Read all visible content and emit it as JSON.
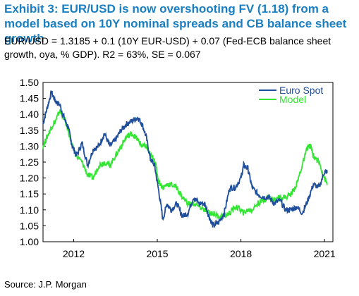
{
  "header": {
    "title": "Exhibit 3: EUR/USD is now overshooting FV (1.18) from a model based on 10Y nominal spreads and CB balance sheet growth",
    "subtitle": "EUR/USD = 1.3185 + 0.1 (10Y EUR-USD) + 0.07 (Fed-ECB balance sheet growth, oya, % GDP). R2 = 63%, SE = 0.067"
  },
  "footer": {
    "source": "Source: J.P. Morgan"
  },
  "chart_data": {
    "type": "line",
    "title": "Exhibit 3: EUR/USD is now overshooting FV (1.18) from a model based on 10Y nominal spreads and CB balance sheet growth",
    "xlabel": "",
    "ylabel": "",
    "xlim": [
      2010.9,
      2021.3
    ],
    "ylim": [
      1.0,
      1.5
    ],
    "x_ticks": [
      "2012",
      "2015",
      "2018",
      "2021"
    ],
    "y_ticks": [
      "1.00",
      "1.05",
      "1.10",
      "1.15",
      "1.20",
      "1.25",
      "1.30",
      "1.35",
      "1.40",
      "1.45",
      "1.50"
    ],
    "grid": false,
    "legend": "top-right",
    "series": [
      {
        "name": "Euro Spot",
        "color": "#1f4e9c",
        "x": [
          2010.9,
          2011.05,
          2011.2,
          2011.35,
          2011.5,
          2011.65,
          2011.8,
          2011.95,
          2012.1,
          2012.3,
          2012.5,
          2012.7,
          2012.9,
          2013.1,
          2013.3,
          2013.5,
          2013.7,
          2013.9,
          2014.1,
          2014.3,
          2014.45,
          2014.6,
          2014.75,
          2014.9,
          2015.05,
          2015.2,
          2015.35,
          2015.5,
          2015.7,
          2015.9,
          2016.1,
          2016.3,
          2016.5,
          2016.7,
          2016.85,
          2017.0,
          2017.2,
          2017.4,
          2017.6,
          2017.8,
          2018.0,
          2018.1,
          2018.25,
          2018.4,
          2018.6,
          2018.8,
          2019.0,
          2019.2,
          2019.4,
          2019.6,
          2019.8,
          2020.0,
          2020.2,
          2020.4,
          2020.6,
          2020.8,
          2021.0,
          2021.1
        ],
        "values": [
          1.37,
          1.42,
          1.47,
          1.44,
          1.43,
          1.39,
          1.36,
          1.3,
          1.27,
          1.31,
          1.24,
          1.29,
          1.3,
          1.34,
          1.3,
          1.32,
          1.35,
          1.37,
          1.38,
          1.39,
          1.37,
          1.33,
          1.26,
          1.24,
          1.16,
          1.07,
          1.12,
          1.1,
          1.12,
          1.08,
          1.09,
          1.14,
          1.12,
          1.12,
          1.08,
          1.05,
          1.06,
          1.09,
          1.17,
          1.17,
          1.2,
          1.24,
          1.23,
          1.17,
          1.15,
          1.14,
          1.14,
          1.12,
          1.13,
          1.1,
          1.1,
          1.11,
          1.09,
          1.13,
          1.18,
          1.17,
          1.22,
          1.22
        ]
      },
      {
        "name": "Model",
        "color": "#33e633",
        "x": [
          2010.9,
          2011.05,
          2011.2,
          2011.35,
          2011.5,
          2011.65,
          2011.8,
          2011.95,
          2012.1,
          2012.3,
          2012.5,
          2012.7,
          2012.9,
          2013.1,
          2013.3,
          2013.5,
          2013.7,
          2013.9,
          2014.1,
          2014.3,
          2014.45,
          2014.6,
          2014.75,
          2014.9,
          2015.05,
          2015.2,
          2015.35,
          2015.5,
          2015.7,
          2015.9,
          2016.1,
          2016.3,
          2016.5,
          2016.7,
          2016.85,
          2017.0,
          2017.2,
          2017.4,
          2017.6,
          2017.8,
          2018.0,
          2018.1,
          2018.25,
          2018.4,
          2018.6,
          2018.8,
          2019.0,
          2019.2,
          2019.4,
          2019.6,
          2019.8,
          2020.0,
          2020.2,
          2020.4,
          2020.5,
          2020.6,
          2020.8,
          2021.0,
          2021.1
        ],
        "values": [
          1.3,
          1.33,
          1.36,
          1.38,
          1.41,
          1.39,
          1.35,
          1.3,
          1.27,
          1.25,
          1.21,
          1.2,
          1.24,
          1.25,
          1.24,
          1.27,
          1.3,
          1.33,
          1.34,
          1.32,
          1.3,
          1.3,
          1.27,
          1.26,
          1.19,
          1.17,
          1.18,
          1.18,
          1.17,
          1.14,
          1.12,
          1.12,
          1.11,
          1.1,
          1.09,
          1.09,
          1.08,
          1.08,
          1.09,
          1.11,
          1.1,
          1.09,
          1.1,
          1.1,
          1.12,
          1.13,
          1.14,
          1.13,
          1.14,
          1.14,
          1.15,
          1.18,
          1.24,
          1.3,
          1.3,
          1.27,
          1.25,
          1.2,
          1.18
        ]
      }
    ]
  }
}
